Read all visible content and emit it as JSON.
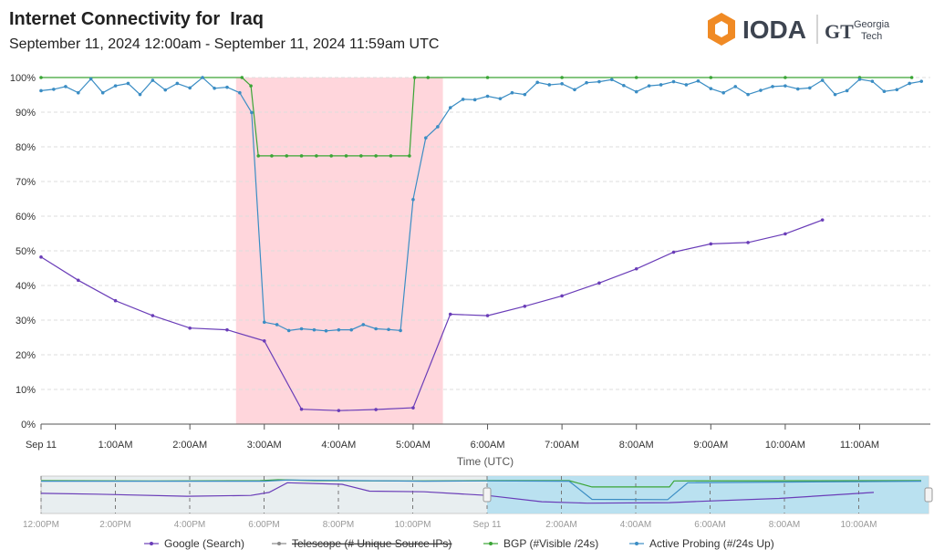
{
  "header": {
    "title": "Internet Connectivity for  Iraq",
    "subtitle": "September 11, 2024 12:00am - September 11, 2024 11:59am UTC",
    "logo_text": "IODA",
    "partner_line1": "Georgia",
    "partner_line2": "Tech",
    "partner_mark": "GT"
  },
  "colors": {
    "google": "#6a3db8",
    "telescope": "#555578",
    "bgp": "#3aa535",
    "probing": "#3b8dc4",
    "outage": "#ffd6dc",
    "navigator_selection": "#b5dff0",
    "logo_orange": "#f08a24"
  },
  "chart_data": {
    "type": "line",
    "xlabel": "Time (UTC)",
    "ylabel": "",
    "ylim": [
      0,
      100
    ],
    "y_ticks": [
      "0%",
      "10%",
      "20%",
      "30%",
      "40%",
      "50%",
      "60%",
      "70%",
      "80%",
      "90%",
      "100%"
    ],
    "x_ticks": [
      {
        "hour": 0,
        "label": "Sep 11"
      },
      {
        "hour": 1,
        "label": "1:00AM"
      },
      {
        "hour": 2,
        "label": "2:00AM"
      },
      {
        "hour": 3,
        "label": "3:00AM"
      },
      {
        "hour": 4,
        "label": "4:00AM"
      },
      {
        "hour": 5,
        "label": "5:00AM"
      },
      {
        "hour": 6,
        "label": "6:00AM"
      },
      {
        "hour": 7,
        "label": "7:00AM"
      },
      {
        "hour": 8,
        "label": "8:00AM"
      },
      {
        "hour": 9,
        "label": "9:00AM"
      },
      {
        "hour": 10,
        "label": "10:00AM"
      },
      {
        "hour": 11,
        "label": "11:00AM"
      }
    ],
    "x_range_hours": [
      0,
      11.95
    ],
    "grid": true,
    "legend_position": "bottom",
    "outage_band_hours": [
      2.62,
      5.4
    ],
    "series": [
      {
        "name": "Google (Search)",
        "key": "google",
        "x": [
          0,
          0.5,
          1,
          1.5,
          2,
          2.5,
          3,
          3.5,
          4,
          4.5,
          5,
          5.5,
          6,
          6.5,
          7,
          7.5,
          8,
          8.5,
          9,
          9.5,
          10,
          10.5
        ],
        "values": [
          48.2,
          41.5,
          35.6,
          31.3,
          27.7,
          27.2,
          24.0,
          4.3,
          3.9,
          4.2,
          4.7,
          31.7,
          31.3,
          34.0,
          37.0,
          40.7,
          44.8,
          49.6,
          52.0,
          52.4,
          54.9,
          58.9
        ]
      },
      {
        "name": "Telescope (# Unique Source IPs)",
        "key": "telescope",
        "disabled": true,
        "x": [],
        "values": []
      },
      {
        "name": "BGP (#Visible /24s)",
        "key": "bgp",
        "x": [
          0,
          2.7,
          2.82,
          2.92,
          3.1,
          3.3,
          3.5,
          3.7,
          3.9,
          4.1,
          4.3,
          4.5,
          4.7,
          4.95,
          5.02,
          5.2,
          6,
          7,
          8,
          9,
          10,
          11,
          11.7
        ],
        "values": [
          100,
          100,
          97.6,
          77.4,
          77.4,
          77.4,
          77.4,
          77.4,
          77.4,
          77.4,
          77.4,
          77.4,
          77.4,
          77.4,
          100,
          100,
          100,
          100,
          100,
          100,
          100,
          100,
          100
        ]
      },
      {
        "name": "Active Probing (#/24s Up)",
        "key": "probing",
        "x": [
          0,
          0.17,
          0.33,
          0.5,
          0.67,
          0.83,
          1,
          1.17,
          1.33,
          1.5,
          1.67,
          1.83,
          2,
          2.17,
          2.33,
          2.5,
          2.67,
          2.83,
          3,
          3.17,
          3.33,
          3.5,
          3.67,
          3.83,
          4,
          4.17,
          4.33,
          4.5,
          4.67,
          4.83,
          5,
          5.17,
          5.33,
          5.5,
          5.67,
          5.83,
          6,
          6.17,
          6.33,
          6.5,
          6.67,
          6.83,
          7,
          7.17,
          7.33,
          7.5,
          7.67,
          7.83,
          8,
          8.17,
          8.33,
          8.5,
          8.67,
          8.83,
          9,
          9.17,
          9.33,
          9.5,
          9.67,
          9.83,
          10,
          10.17,
          10.33,
          10.5,
          10.67,
          10.83,
          11,
          11.17,
          11.33,
          11.5,
          11.67,
          11.83
        ],
        "values": [
          96.2,
          96.6,
          97.4,
          95.6,
          99.6,
          95.6,
          97.6,
          98.3,
          95.1,
          99.2,
          96.4,
          98.3,
          97.0,
          100,
          96.9,
          97.2,
          95.6,
          89.9,
          29.4,
          28.7,
          27.0,
          27.5,
          27.2,
          26.9,
          27.2,
          27.2,
          28.7,
          27.5,
          27.3,
          27.0,
          64.8,
          82.6,
          85.8,
          91.3,
          93.7,
          93.6,
          94.6,
          93.9,
          95.6,
          95.1,
          98.6,
          97.9,
          98.2,
          96.5,
          98.5,
          98.8,
          99.4,
          97.7,
          95.9,
          97.6,
          97.9,
          98.8,
          97.9,
          99.0,
          96.8,
          95.6,
          97.4,
          95.1,
          96.3,
          97.4,
          97.6,
          96.7,
          97.0,
          99.2,
          95.1,
          96.2,
          99.5,
          98.9,
          96.0,
          96.5,
          98.3,
          98.9
        ]
      }
    ],
    "navigator": {
      "x_ticks": [
        "12:00PM",
        "2:00PM",
        "4:00PM",
        "6:00PM",
        "8:00PM",
        "10:00PM",
        "Sep 11",
        "2:00AM",
        "4:00AM",
        "6:00AM",
        "8:00AM",
        "10:00AM"
      ]
    }
  }
}
